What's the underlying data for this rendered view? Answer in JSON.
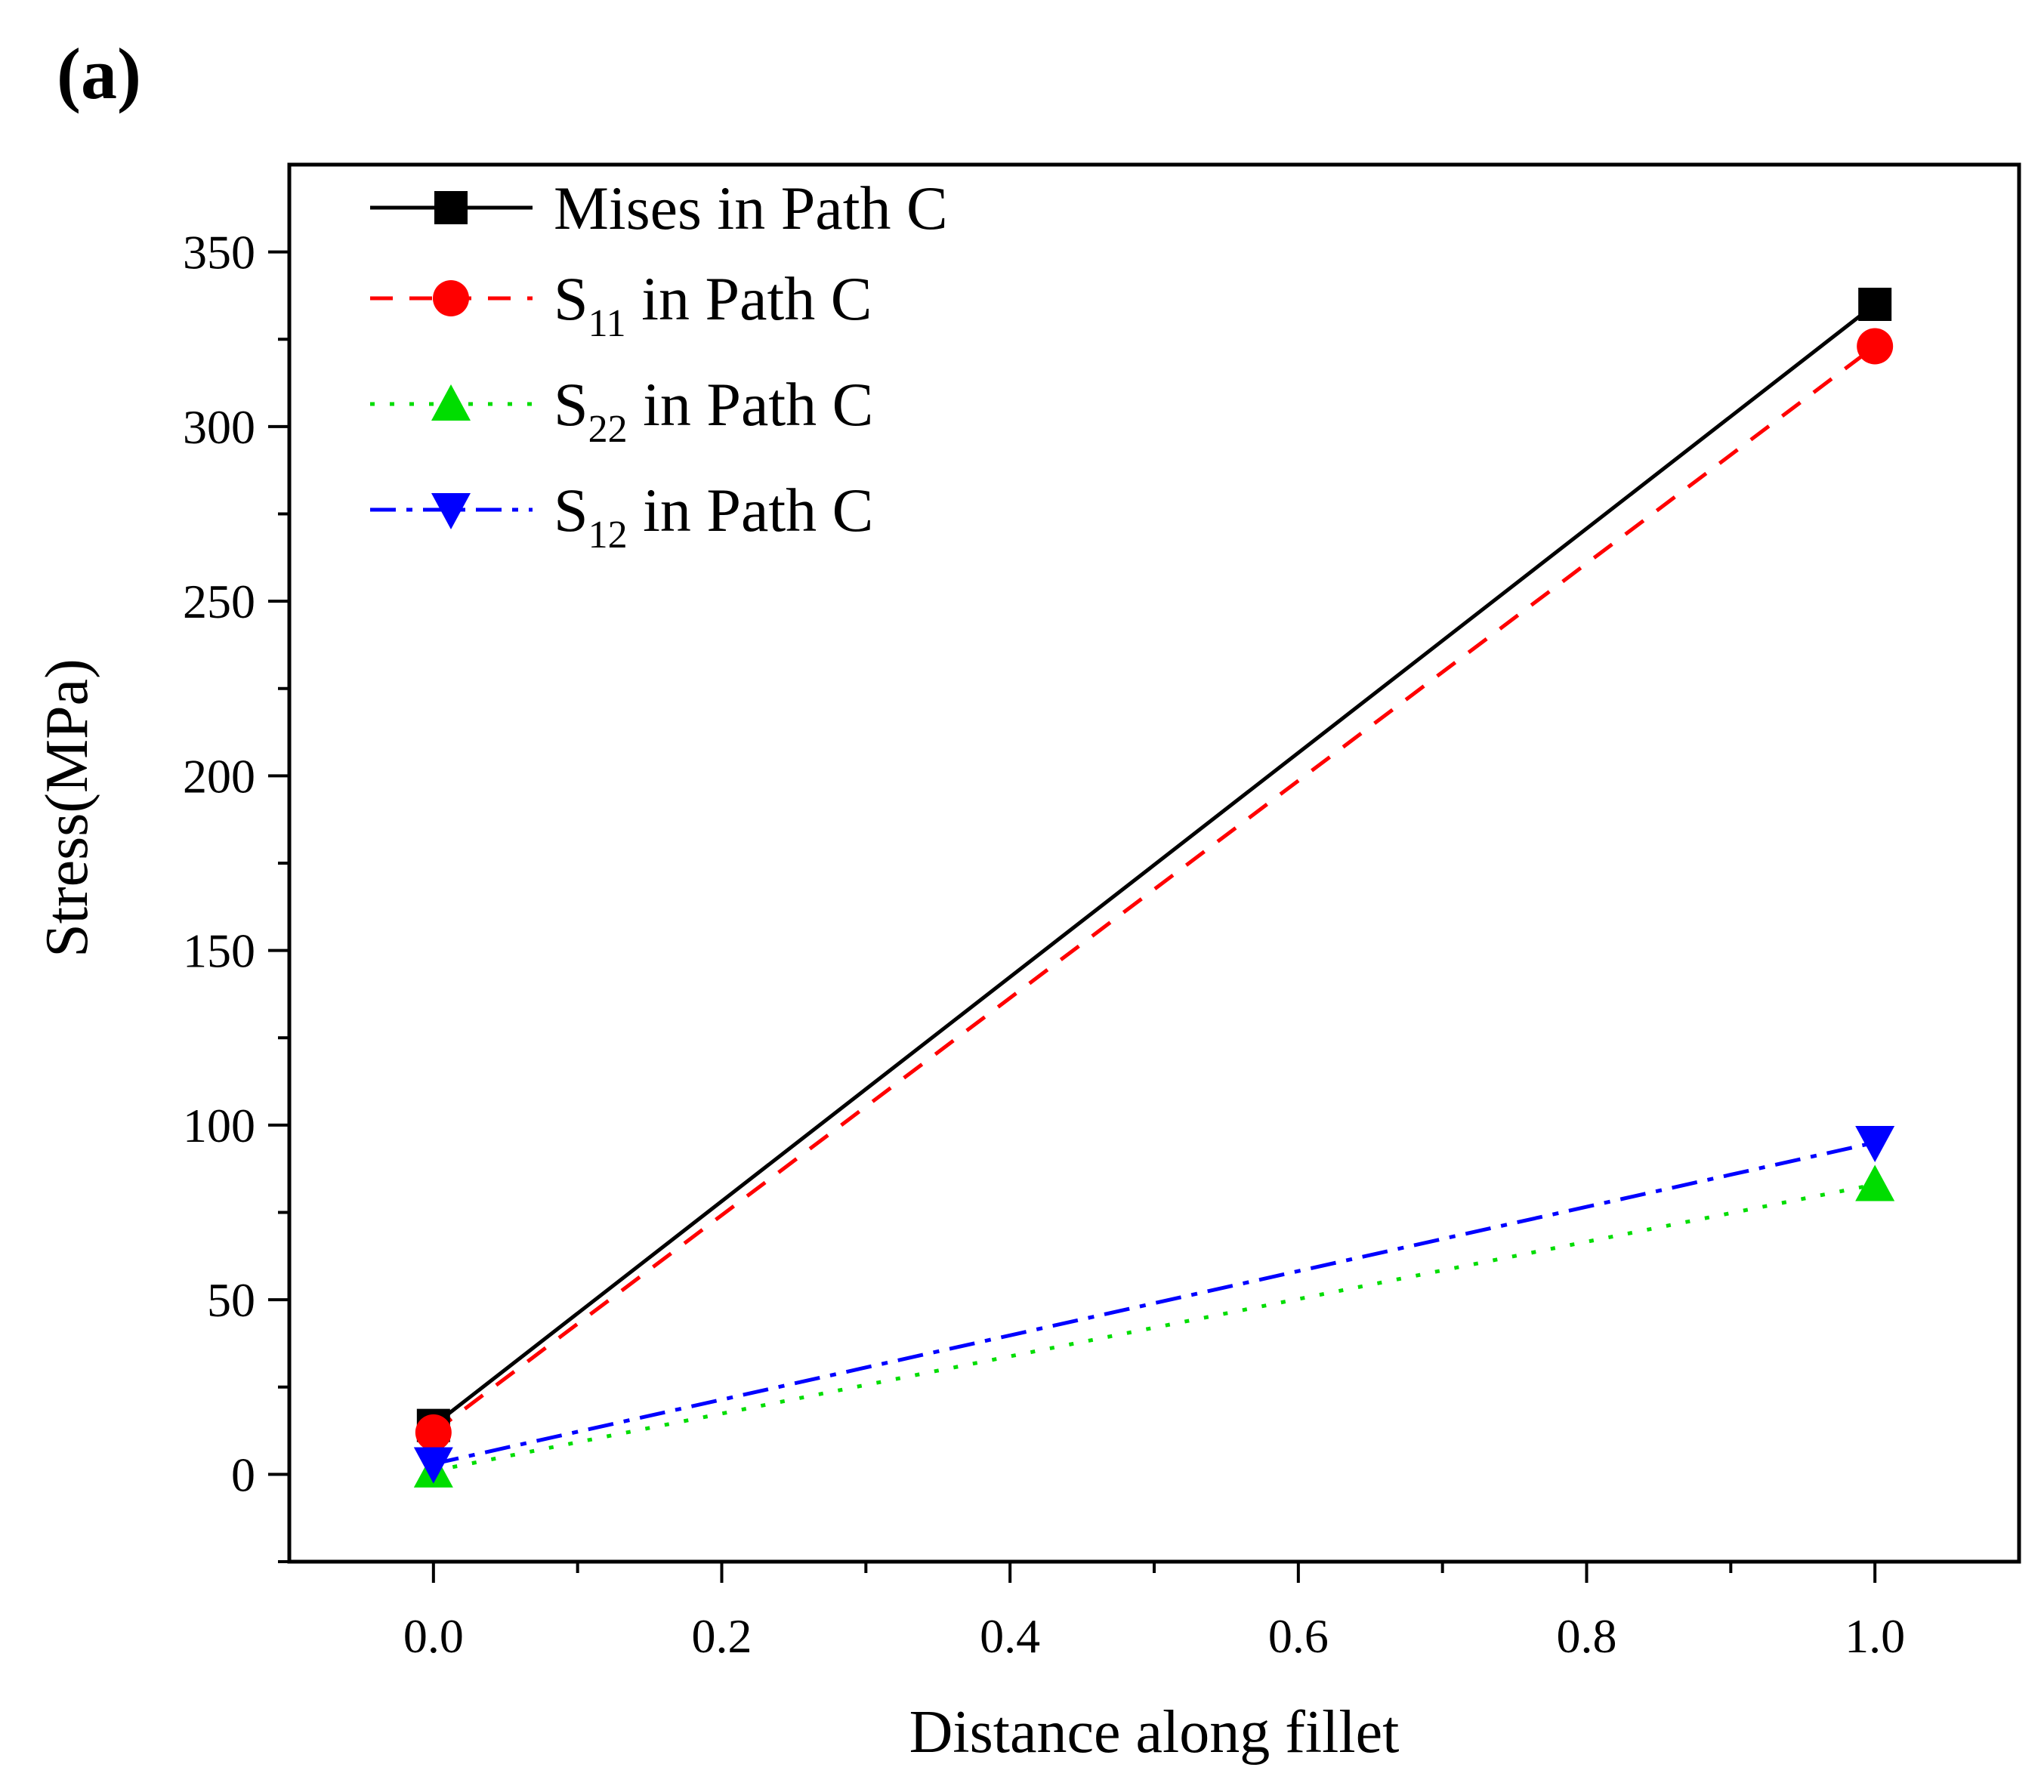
{
  "panel_label": "(a)",
  "chart_data": {
    "type": "line",
    "title": "",
    "xlabel": "Distance along fillet",
    "ylabel": "Stress(MPa)",
    "xlim": [
      -0.1,
      1.1
    ],
    "ylim": [
      -25,
      375
    ],
    "xticks": [
      0.0,
      0.2,
      0.4,
      0.6,
      0.8,
      1.0
    ],
    "xtick_labels": [
      "0.0",
      "0.2",
      "0.4",
      "0.6",
      "0.8",
      "1.0"
    ],
    "yticks": [
      0,
      50,
      100,
      150,
      200,
      250,
      300,
      350
    ],
    "ytick_labels": [
      "0",
      "50",
      "100",
      "150",
      "200",
      "250",
      "300",
      "350"
    ],
    "legend_position": "top-left",
    "series": [
      {
        "name": "Mises in Path C",
        "label_main": "Mises in Path C",
        "label_sub": "",
        "label_rest": "",
        "x": [
          0.0,
          1.0
        ],
        "y": [
          14,
          335
        ],
        "color": "#000000",
        "dash": "solid",
        "marker": "square"
      },
      {
        "name": "S11 in Path C",
        "label_main": "S",
        "label_sub": "11",
        "label_rest": " in Path C",
        "x": [
          0.0,
          1.0
        ],
        "y": [
          12,
          323
        ],
        "color": "#ff0000",
        "dash": "dashed",
        "marker": "circle"
      },
      {
        "name": "S22 in Path C",
        "label_main": "S",
        "label_sub": "22",
        "label_rest": " in Path C",
        "x": [
          0.0,
          1.0
        ],
        "y": [
          1,
          83
        ],
        "color": "#00dd00",
        "dash": "dotted",
        "marker": "triangle-up"
      },
      {
        "name": "S12 in Path C",
        "label_main": "S",
        "label_sub": "12",
        "label_rest": " in Path C",
        "x": [
          0.0,
          1.0
        ],
        "y": [
          3,
          95
        ],
        "color": "#0000ff",
        "dash": "dashdot",
        "marker": "triangle-down"
      }
    ]
  }
}
